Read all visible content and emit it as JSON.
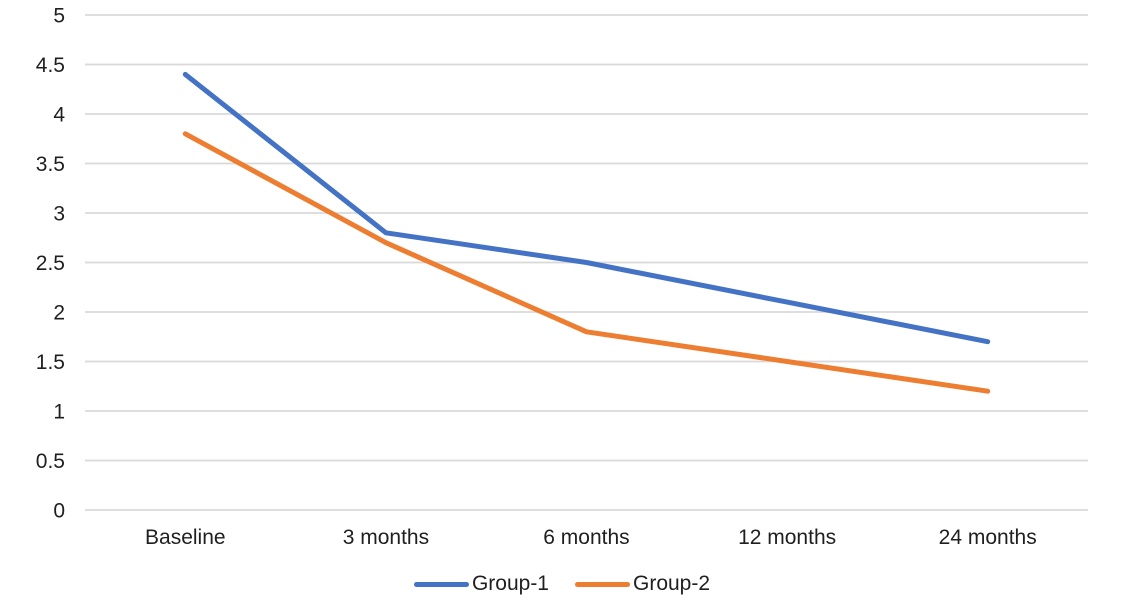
{
  "chart_data": {
    "type": "line",
    "title": "",
    "xlabel": "",
    "ylabel": "",
    "categories": [
      "Baseline",
      "3 months",
      "6 months",
      "12 months",
      "24 months"
    ],
    "series": [
      {
        "name": "Group-1",
        "color": "#4472C4",
        "values": [
          4.4,
          2.8,
          2.5,
          2.1,
          1.7
        ]
      },
      {
        "name": "Group-2",
        "color": "#ED7D31",
        "values": [
          3.8,
          2.7,
          1.8,
          1.5,
          1.2
        ]
      }
    ],
    "ylim": [
      0,
      5
    ],
    "ytick_step": 0.5,
    "ytick_labels": [
      "0",
      "0.5",
      "1",
      "1.5",
      "2",
      "2.5",
      "3",
      "3.5",
      "4",
      "4.5",
      "5"
    ],
    "grid": "horizontal",
    "gridline_color": "#D9D9D9",
    "axis_text_color": "#1f1f1f",
    "line_width": 5,
    "legend_position": "bottom-center",
    "background_color": "#FFFFFF"
  }
}
